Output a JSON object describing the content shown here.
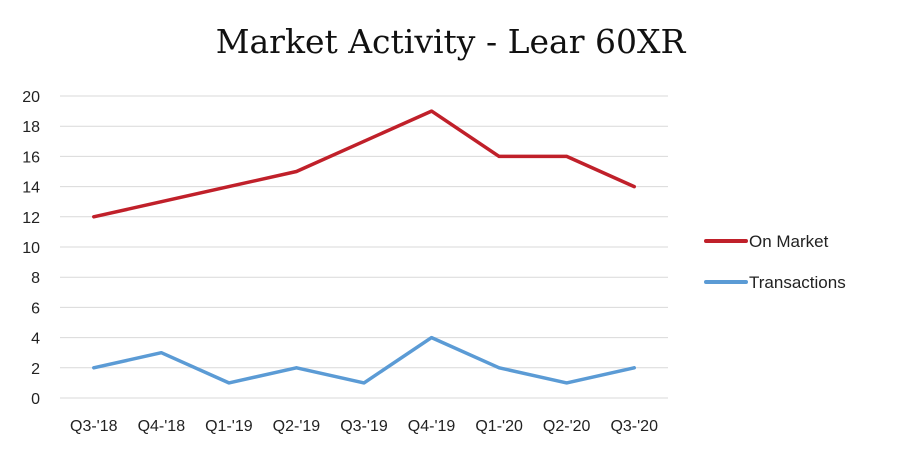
{
  "chart_data": {
    "type": "line",
    "title": "Market Activity - Lear 60XR",
    "categories": [
      "Q3-'18",
      "Q4-'18",
      "Q1-'19",
      "Q2-'19",
      "Q3-'19",
      "Q4-'19",
      "Q1-'20",
      "Q2-'20",
      "Q3-'20"
    ],
    "series": [
      {
        "name": "On Market",
        "color": "#C0202A",
        "values": [
          12,
          13,
          14,
          15,
          17,
          19,
          16,
          16,
          14
        ]
      },
      {
        "name": "Transactions",
        "color": "#5B9BD5",
        "values": [
          2,
          3,
          1,
          2,
          1,
          4,
          2,
          1,
          2
        ]
      }
    ],
    "ylim": [
      0,
      20
    ],
    "yticks": [
      0,
      2,
      4,
      6,
      8,
      10,
      12,
      14,
      16,
      18,
      20
    ],
    "grid": true,
    "legend_position": "right"
  }
}
